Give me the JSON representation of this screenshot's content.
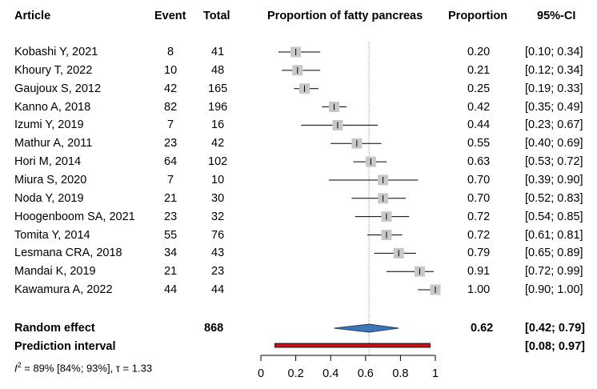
{
  "chart_data": {
    "type": "forest",
    "title": "Proportion of fatty pancreas",
    "headers": {
      "article": "Article",
      "event": "Event",
      "total": "Total",
      "plot": "Proportion of fatty pancreas",
      "proportion": "Proportion",
      "ci": "95%-CI"
    },
    "studies": [
      {
        "article": "Kobashi Y, 2021",
        "event": "8",
        "total": "41",
        "proportion": 0.2,
        "lower": 0.1,
        "upper": 0.34,
        "proportion_label": "0.20",
        "ci_label": "[0.10; 0.34]",
        "weight": 1.0
      },
      {
        "article": "Khoury T, 2022",
        "event": "10",
        "total": "48",
        "proportion": 0.21,
        "lower": 0.12,
        "upper": 0.34,
        "proportion_label": "0.21",
        "ci_label": "[0.12; 0.34]",
        "weight": 1.0
      },
      {
        "article": "Gaujoux S, 2012",
        "event": "42",
        "total": "165",
        "proportion": 0.25,
        "lower": 0.19,
        "upper": 0.33,
        "proportion_label": "0.25",
        "ci_label": "[0.19; 0.33]",
        "weight": 1.0
      },
      {
        "article": "Kanno A, 2018",
        "event": "82",
        "total": "196",
        "proportion": 0.42,
        "lower": 0.35,
        "upper": 0.49,
        "proportion_label": "0.42",
        "ci_label": "[0.35; 0.49]",
        "weight": 1.0
      },
      {
        "article": "Izumi Y, 2019",
        "event": "7",
        "total": "16",
        "proportion": 0.44,
        "lower": 0.23,
        "upper": 0.67,
        "proportion_label": "0.44",
        "ci_label": "[0.23; 0.67]",
        "weight": 1.0
      },
      {
        "article": "Mathur A, 2011",
        "event": "23",
        "total": "42",
        "proportion": 0.55,
        "lower": 0.4,
        "upper": 0.69,
        "proportion_label": "0.55",
        "ci_label": "[0.40; 0.69]",
        "weight": 1.0
      },
      {
        "article": "Hori M, 2014",
        "event": "64",
        "total": "102",
        "proportion": 0.63,
        "lower": 0.53,
        "upper": 0.72,
        "proportion_label": "0.63",
        "ci_label": "[0.53; 0.72]",
        "weight": 1.0
      },
      {
        "article": "Miura S, 2020",
        "event": "7",
        "total": "10",
        "proportion": 0.7,
        "lower": 0.39,
        "upper": 0.9,
        "proportion_label": "0.70",
        "ci_label": "[0.39; 0.90]",
        "weight": 1.0
      },
      {
        "article": "Noda Y, 2019",
        "event": "21",
        "total": "30",
        "proportion": 0.7,
        "lower": 0.52,
        "upper": 0.83,
        "proportion_label": "0.70",
        "ci_label": "[0.52; 0.83]",
        "weight": 1.0
      },
      {
        "article": "Hoogenboom SA, 2021",
        "event": "23",
        "total": "32",
        "proportion": 0.72,
        "lower": 0.54,
        "upper": 0.85,
        "proportion_label": "0.72",
        "ci_label": "[0.54; 0.85]",
        "weight": 1.0
      },
      {
        "article": "Tomita Y, 2014",
        "event": "55",
        "total": "76",
        "proportion": 0.72,
        "lower": 0.61,
        "upper": 0.81,
        "proportion_label": "0.72",
        "ci_label": "[0.61; 0.81]",
        "weight": 1.0
      },
      {
        "article": "Lesmana CRA, 2018",
        "event": "34",
        "total": "43",
        "proportion": 0.79,
        "lower": 0.65,
        "upper": 0.89,
        "proportion_label": "0.79",
        "ci_label": "[0.65; 0.89]",
        "weight": 1.0
      },
      {
        "article": "Mandai K, 2019",
        "event": "21",
        "total": "23",
        "proportion": 0.91,
        "lower": 0.72,
        "upper": 0.99,
        "proportion_label": "0.91",
        "ci_label": "[0.72; 0.99]",
        "weight": 1.0
      },
      {
        "article": "Kawamura A, 2022",
        "event": "44",
        "total": "44",
        "proportion": 1.0,
        "lower": 0.9,
        "upper": 1.0,
        "proportion_label": "1.00",
        "ci_label": "[0.90; 1.00]",
        "weight": 1.0
      }
    ],
    "random_effect": {
      "label": "Random effect",
      "total": "868",
      "estimate": 0.62,
      "lower": 0.42,
      "upper": 0.79,
      "proportion_label": "0.62",
      "ci_label": "[0.42; 0.79]"
    },
    "prediction_interval": {
      "label": "Prediction interval",
      "lower": 0.08,
      "upper": 0.97,
      "ci_label": "[0.08; 0.97]"
    },
    "heterogeneity": {
      "i2_symbol": "I",
      "i2_sup": "2",
      "text": " = 89% [84%; 93%], τ = 1.33"
    },
    "axis": {
      "xlim": [
        0,
        1
      ],
      "ticks": [
        0,
        0.2,
        0.4,
        0.6,
        0.8,
        1
      ],
      "tick_labels": [
        "0",
        "0.2",
        "0.4",
        "0.6",
        "0.8",
        "1"
      ]
    },
    "colors": {
      "square": "#c8c8c8",
      "diamond": "#3f76b5",
      "diamond_stroke": "#1f3f6a",
      "prediction": "#c0141a",
      "refline": "#a0a0a0"
    }
  }
}
